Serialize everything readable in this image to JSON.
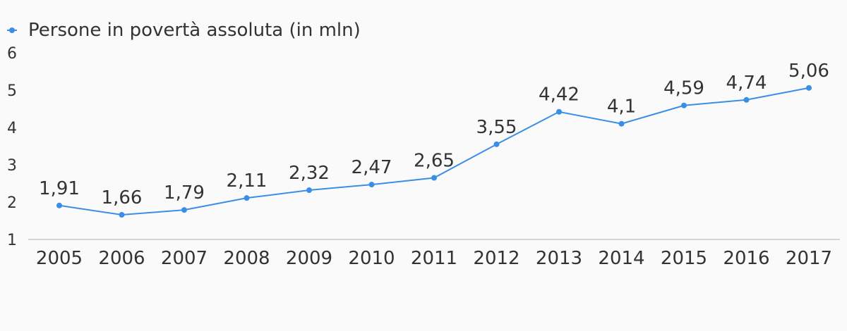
{
  "chart_data": {
    "type": "line",
    "categories": [
      "2005",
      "2006",
      "2007",
      "2008",
      "2009",
      "2010",
      "2011",
      "2012",
      "2013",
      "2014",
      "2015",
      "2016",
      "2017"
    ],
    "series": [
      {
        "name": "Persone in povertà assoluta (in mln)",
        "values": [
          1.91,
          1.66,
          1.79,
          2.11,
          2.32,
          2.47,
          2.65,
          3.55,
          4.42,
          4.1,
          4.59,
          4.74,
          5.06
        ],
        "data_labels": [
          "1,91",
          "1,66",
          "1,79",
          "2,11",
          "2,32",
          "2,47",
          "2,65",
          "3,55",
          "4,42",
          "4,1",
          "4,59",
          "4,74",
          "5,06"
        ],
        "color": "#3a8ee6"
      }
    ],
    "y_ticks": [
      "1",
      "2",
      "3",
      "4",
      "5",
      "6"
    ],
    "ylim": [
      1,
      6
    ],
    "legend": "top-left",
    "grid": false,
    "colors": {
      "background": "#fafafa",
      "axis": "#d4d4d4",
      "text": "#333333"
    }
  }
}
